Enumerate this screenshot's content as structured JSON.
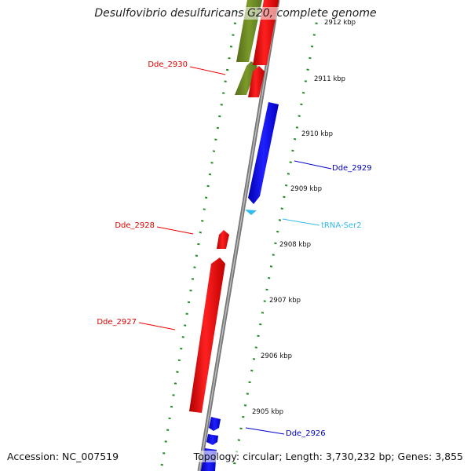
{
  "title": "Desulfovibrio desulfuricans G20, complete genome",
  "accession_text": "Accession: NC_007519",
  "summary_text": "Topology: circular; Length: 3,730,232 bp; Genes: 3,855",
  "colors": {
    "forward_gene": "#ff0000",
    "reverse_gene": "#0000ff",
    "trna": "#33bbee",
    "other_feature": "#6b8e23",
    "backbone": "#888888",
    "ticks": "#228b22"
  },
  "ticks": [
    {
      "label": "2912 kbp"
    },
    {
      "label": "2911 kbp"
    },
    {
      "label": "2910 kbp"
    },
    {
      "label": "2909 kbp"
    },
    {
      "label": "2908 kbp"
    },
    {
      "label": "2907 kbp"
    },
    {
      "label": "2906 kbp"
    },
    {
      "label": "2905 kbp"
    }
  ],
  "gene_labels": [
    {
      "name": "Dde_2930",
      "strand": "forward"
    },
    {
      "name": "Dde_2929",
      "strand": "reverse"
    },
    {
      "name": "tRNA-Ser2",
      "strand": "trna"
    },
    {
      "name": "Dde_2928",
      "strand": "forward"
    },
    {
      "name": "Dde_2927",
      "strand": "forward"
    },
    {
      "name": "Dde_2926",
      "strand": "reverse"
    }
  ]
}
